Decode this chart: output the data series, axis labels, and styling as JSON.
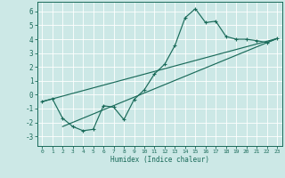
{
  "xlabel": "Humidex (Indice chaleur)",
  "bg_color": "#cce8e6",
  "grid_color": "#ffffff",
  "line_color": "#1a6b5a",
  "xlim": [
    -0.5,
    23.5
  ],
  "ylim": [
    -3.7,
    6.7
  ],
  "xticks": [
    0,
    1,
    2,
    3,
    4,
    5,
    6,
    7,
    8,
    9,
    10,
    11,
    12,
    13,
    14,
    15,
    16,
    17,
    18,
    19,
    20,
    21,
    22,
    23
  ],
  "yticks": [
    -3,
    -2,
    -1,
    0,
    1,
    2,
    3,
    4,
    5,
    6
  ],
  "curve1_x": [
    0,
    1,
    2,
    3,
    4,
    5,
    6,
    7,
    8,
    9,
    10,
    11,
    12,
    13,
    14,
    15,
    16,
    17,
    18,
    19,
    20,
    21,
    22,
    23
  ],
  "curve1_y": [
    -0.5,
    -0.3,
    -1.7,
    -2.3,
    -2.6,
    -2.5,
    -0.8,
    -0.9,
    -1.8,
    -0.35,
    0.35,
    1.5,
    2.2,
    3.55,
    5.55,
    6.2,
    5.2,
    5.3,
    4.2,
    4.0,
    4.0,
    3.9,
    3.75,
    4.05
  ],
  "curve2_x": [
    0,
    23
  ],
  "curve2_y": [
    -0.5,
    4.05
  ],
  "curve3_x": [
    2,
    23
  ],
  "curve3_y": [
    -2.3,
    4.05
  ],
  "xlabel_fontsize": 5.5,
  "tick_fontsize_x": 4.5,
  "tick_fontsize_y": 5.5
}
